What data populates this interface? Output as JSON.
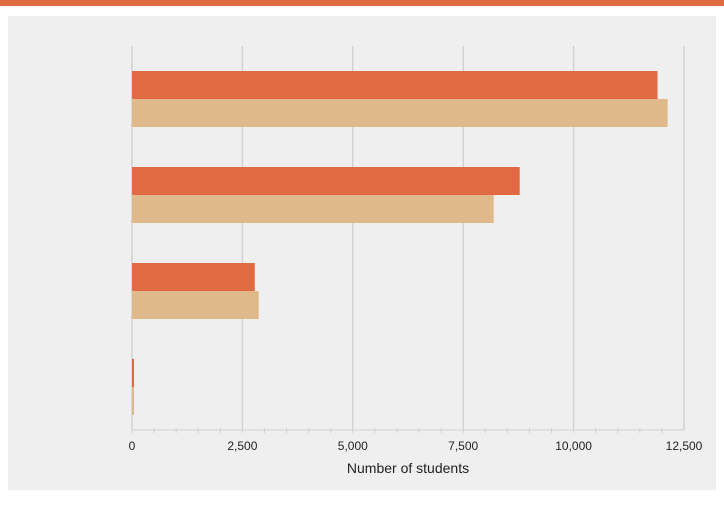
{
  "chart_data": {
    "type": "bar",
    "orientation": "horizontal",
    "categories": [
      "",
      "",
      "",
      ""
    ],
    "series": [
      {
        "values": [
          11900,
          8780,
          2780,
          40
        ],
        "color": "#e26a43"
      },
      {
        "values": [
          12130,
          8190,
          2870,
          40
        ],
        "color": "#e0b98a"
      }
    ],
    "xlabel": "Number of students",
    "ylabel": "",
    "xlim": [
      0,
      12500
    ],
    "xticks": [
      "0",
      "2,500",
      "5,000",
      "7,500",
      "10,000",
      "12,500"
    ],
    "xtick_values": [
      0,
      2500,
      5000,
      7500,
      10000,
      12500
    ],
    "grid": true,
    "legend": "none"
  },
  "colors": {
    "top_rule": "#e26a43",
    "panel_background": "#efefef",
    "gridline": "#d2d2d2"
  }
}
